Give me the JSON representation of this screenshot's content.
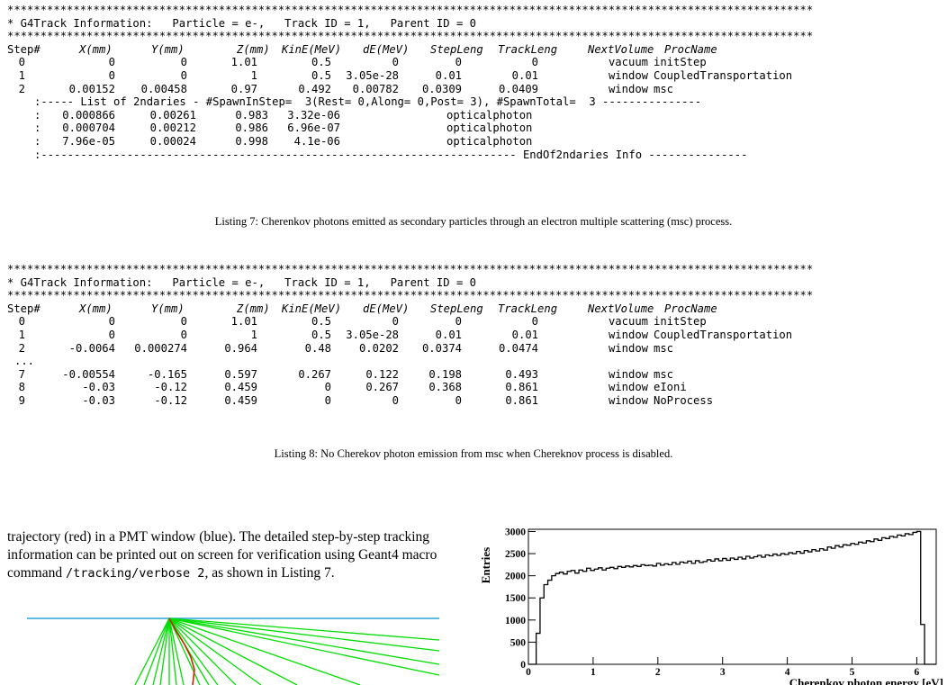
{
  "listing7": {
    "stars": "**************************************************************************************************************************",
    "info_line": "* G4Track Information:   Particle = e-,   Track ID = 1,   Parent ID = 0",
    "header": {
      "step": "Step#",
      "x": "X(mm)",
      "y": "Y(mm)",
      "z": "Z(mm)",
      "kine": "KinE(MeV)",
      "de": "dE(MeV)",
      "stepleng": "StepLeng",
      "trackleng": "TrackLeng",
      "nextvol": "NextVolume",
      "proc": "ProcName"
    },
    "rows": [
      {
        "step": "0",
        "x": "0",
        "y": "0",
        "z": "1.01",
        "kine": "0.5",
        "de": "0",
        "stepleng": "0",
        "trackleng": "0",
        "vol": "vacuum",
        "proc": "initStep"
      },
      {
        "step": "1",
        "x": "0",
        "y": "0",
        "z": "1",
        "kine": "0.5",
        "de": "3.05e-28",
        "stepleng": "0.01",
        "trackleng": "0.01",
        "vol": "window",
        "proc": "CoupledTransportation"
      },
      {
        "step": "2",
        "x": "0.00152",
        "y": "0.00458",
        "z": "0.97",
        "kine": "0.492",
        "de": "0.00782",
        "stepleng": "0.0309",
        "trackleng": "0.0409",
        "vol": "window",
        "proc": "msc"
      }
    ],
    "secondaries_header": ":----- List of 2ndaries - #SpawnInStep=  3(Rest= 0,Along= 0,Post= 3), #SpawnTotal=  3 ---------------",
    "secondaries": [
      {
        "x": "0.000866",
        "y": "0.00261",
        "z": "0.983",
        "e": "3.32e-06",
        "name": "opticalphoton"
      },
      {
        "x": "0.000704",
        "y": "0.00212",
        "z": "0.986",
        "e": "6.96e-07",
        "name": "opticalphoton"
      },
      {
        "x": "7.96e-05",
        "y": "0.00024",
        "z": "0.998",
        "e": "4.1e-06",
        "name": "opticalphoton"
      }
    ],
    "end_line": ":------------------------------------------------------------------------ EndOf2ndaries Info ---------------",
    "caption": "Listing 7: Cherenkov photons emitted as secondary particles through an electron multiple scattering (msc) process."
  },
  "listing8": {
    "stars": "**************************************************************************************************************************",
    "info_line": "* G4Track Information:   Particle = e-,   Track ID = 1,   Parent ID = 0",
    "rows": [
      {
        "step": "0",
        "x": "0",
        "y": "0",
        "z": "1.01",
        "kine": "0.5",
        "de": "0",
        "stepleng": "0",
        "trackleng": "0",
        "vol": "vacuum",
        "proc": "initStep"
      },
      {
        "step": "1",
        "x": "0",
        "y": "0",
        "z": "1",
        "kine": "0.5",
        "de": "3.05e-28",
        "stepleng": "0.01",
        "trackleng": "0.01",
        "vol": "window",
        "proc": "CoupledTransportation"
      },
      {
        "step": "2",
        "x": "-0.0064",
        "y": "0.000274",
        "z": "0.964",
        "kine": "0.48",
        "de": "0.0202",
        "stepleng": "0.0374",
        "trackleng": "0.0474",
        "vol": "window",
        "proc": "msc"
      }
    ],
    "ellipsis": "...",
    "rows2": [
      {
        "step": "7",
        "x": "-0.00554",
        "y": "-0.165",
        "z": "0.597",
        "kine": "0.267",
        "de": "0.122",
        "stepleng": "0.198",
        "trackleng": "0.493",
        "vol": "window",
        "proc": "msc"
      },
      {
        "step": "8",
        "x": "-0.03",
        "y": "-0.12",
        "z": "0.459",
        "kine": "0",
        "de": "0.267",
        "stepleng": "0.368",
        "trackleng": "0.861",
        "vol": "window",
        "proc": "eIoni"
      },
      {
        "step": "9",
        "x": "-0.03",
        "y": "-0.12",
        "z": "0.459",
        "kine": "0",
        "de": "0",
        "stepleng": "0",
        "trackleng": "0.861",
        "vol": "window",
        "proc": "NoProcess"
      }
    ],
    "caption": "Listing 8: No Cherekov photon emission from msc when Chereknov process is disabled."
  },
  "body": {
    "text_before": "trajectory (red) in a PMT window (blue). The detailed step-by-step tracking information can be printed out on screen for verification using Geant4 macro command ",
    "command": "/tracking/verbose 2",
    "text_after": ", as shown in Listing 7."
  },
  "colors": {
    "photon": "#00dd00",
    "electron": "#cc2200",
    "window": "#2aa6d6"
  },
  "chart_data": {
    "type": "histogram",
    "xlabel": "Cherenkov photon energy [eV]",
    "ylabel": "Entries",
    "xlim": [
      0,
      6.3
    ],
    "ylim": [
      0,
      3050
    ],
    "xticks": [
      0,
      1,
      2,
      3,
      4,
      5,
      6
    ],
    "yticks": [
      0,
      500,
      1000,
      1500,
      2000,
      2500,
      3000
    ],
    "bin_width": 0.06,
    "values": [
      0,
      0,
      700,
      1500,
      1800,
      1900,
      2000,
      2050,
      2080,
      2040,
      2100,
      2120,
      2060,
      2130,
      2100,
      2170,
      2120,
      2150,
      2180,
      2130,
      2170,
      2190,
      2160,
      2210,
      2190,
      2220,
      2200,
      2230,
      2210,
      2250,
      2230,
      2240,
      2220,
      2280,
      2240,
      2270,
      2250,
      2300,
      2260,
      2310,
      2290,
      2330,
      2280,
      2340,
      2300,
      2320,
      2360,
      2330,
      2380,
      2340,
      2390,
      2350,
      2400,
      2370,
      2420,
      2380,
      2440,
      2400,
      2430,
      2460,
      2420,
      2470,
      2450,
      2490,
      2460,
      2500,
      2480,
      2520,
      2500,
      2550,
      2510,
      2570,
      2540,
      2590,
      2560,
      2610,
      2580,
      2650,
      2620,
      2680,
      2650,
      2700,
      2690,
      2730,
      2710,
      2760,
      2740,
      2790,
      2770,
      2830,
      2800,
      2860,
      2840,
      2890,
      2870,
      2920,
      2900,
      2950,
      2930,
      2980,
      3000,
      900,
      0,
      0,
      0
    ]
  }
}
